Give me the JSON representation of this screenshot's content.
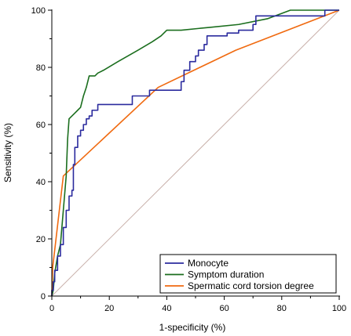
{
  "chart_data": {
    "type": "line",
    "title": "",
    "xlabel": "1-specificity (%)",
    "ylabel": "Sensitivity (%)",
    "xlim": [
      0,
      100
    ],
    "ylim": [
      0,
      100
    ],
    "xticks": [
      "0",
      "20",
      "40",
      "60",
      "80",
      "100"
    ],
    "yticks": [
      "0",
      "20",
      "40",
      "60",
      "80",
      "100"
    ],
    "grid": false,
    "legend_position": "bottom-right",
    "reference_line": {
      "points": [
        [
          0,
          0
        ],
        [
          100,
          100
        ]
      ],
      "color": "#c9b1ab"
    },
    "series": [
      {
        "name": "Monocyte",
        "color": "#2b2b9e",
        "points": [
          [
            0,
            0
          ],
          [
            0,
            2
          ],
          [
            0.5,
            2
          ],
          [
            0.5,
            5
          ],
          [
            1,
            5
          ],
          [
            1,
            9
          ],
          [
            2,
            9
          ],
          [
            2,
            14
          ],
          [
            3,
            14
          ],
          [
            3,
            18
          ],
          [
            4,
            18
          ],
          [
            4,
            24
          ],
          [
            5,
            24
          ],
          [
            5,
            30
          ],
          [
            6,
            30
          ],
          [
            6,
            35
          ],
          [
            7,
            35
          ],
          [
            7,
            37
          ],
          [
            7.5,
            37
          ],
          [
            7.5,
            46
          ],
          [
            8,
            46
          ],
          [
            8,
            52
          ],
          [
            9,
            52
          ],
          [
            9,
            56
          ],
          [
            10,
            56
          ],
          [
            10,
            58
          ],
          [
            11,
            58
          ],
          [
            11,
            60
          ],
          [
            12,
            60
          ],
          [
            12,
            62
          ],
          [
            13,
            62
          ],
          [
            13,
            63
          ],
          [
            14,
            63
          ],
          [
            14,
            65
          ],
          [
            16,
            65
          ],
          [
            16,
            67
          ],
          [
            28,
            67
          ],
          [
            28,
            70
          ],
          [
            34,
            70
          ],
          [
            34,
            72
          ],
          [
            45,
            72
          ],
          [
            45,
            75
          ],
          [
            46,
            75
          ],
          [
            46,
            79
          ],
          [
            48,
            79
          ],
          [
            48,
            82
          ],
          [
            50,
            82
          ],
          [
            50,
            84
          ],
          [
            51,
            84
          ],
          [
            51,
            86
          ],
          [
            53,
            86
          ],
          [
            53,
            88
          ],
          [
            54,
            88
          ],
          [
            54,
            91
          ],
          [
            61,
            91
          ],
          [
            61,
            92
          ],
          [
            63,
            92
          ],
          [
            65,
            92
          ],
          [
            65,
            93
          ],
          [
            70,
            93
          ],
          [
            70,
            95
          ],
          [
            71,
            95
          ],
          [
            71,
            98
          ],
          [
            95,
            98
          ],
          [
            95,
            100
          ],
          [
            100,
            100
          ]
        ]
      },
      {
        "name": "Symptom duration",
        "color": "#1b6e1e",
        "points": [
          [
            0,
            0
          ],
          [
            0.5,
            2
          ],
          [
            1,
            8
          ],
          [
            2,
            14
          ],
          [
            3,
            18
          ],
          [
            4,
            30
          ],
          [
            5,
            42
          ],
          [
            5.5,
            55
          ],
          [
            6,
            62
          ],
          [
            7,
            63
          ],
          [
            8,
            64
          ],
          [
            9,
            65
          ],
          [
            10,
            66
          ],
          [
            11,
            70
          ],
          [
            12,
            73
          ],
          [
            13,
            77
          ],
          [
            15,
            77
          ],
          [
            16,
            78
          ],
          [
            18,
            79
          ],
          [
            23,
            82
          ],
          [
            30,
            86
          ],
          [
            35,
            89
          ],
          [
            38,
            91
          ],
          [
            40,
            93
          ],
          [
            45,
            93
          ],
          [
            55,
            94
          ],
          [
            65,
            95
          ],
          [
            75,
            97
          ],
          [
            83,
            100
          ],
          [
            100,
            100
          ]
        ]
      },
      {
        "name": "Spermatic cord torsion degree",
        "color": "#f06a10",
        "points": [
          [
            0,
            0
          ],
          [
            0.3,
            10
          ],
          [
            4,
            42
          ],
          [
            37,
            73
          ],
          [
            64,
            86
          ],
          [
            100,
            100
          ]
        ]
      }
    ]
  }
}
